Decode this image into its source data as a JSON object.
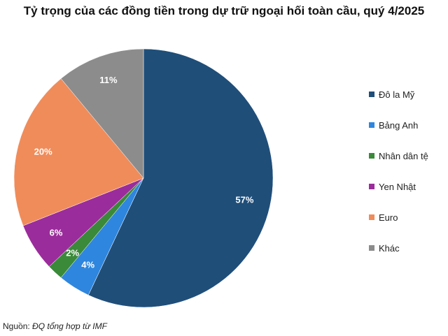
{
  "chart_data": {
    "type": "pie",
    "title": "Tỷ trọng của các đồng tiền trong dự trữ ngoại hối toàn cầu, quý 4/2025",
    "legend_position": "right",
    "slices": [
      {
        "label": "Đô la Mỹ",
        "value": 57,
        "display": "57%",
        "color": "#1F4E79"
      },
      {
        "label": "Bảng Anh",
        "value": 4,
        "display": "4%",
        "color": "#2E86DE"
      },
      {
        "label": "Nhân dân tệ",
        "value": 2,
        "display": "2%",
        "color": "#3A8A3A"
      },
      {
        "label": "Yen Nhật",
        "value": 6,
        "display": "6%",
        "color": "#9B2C9B"
      },
      {
        "label": "Euro",
        "value": 20,
        "display": "20%",
        "color": "#F08C5A"
      },
      {
        "label": "Khác",
        "value": 11,
        "display": "11%",
        "color": "#8C8C8C"
      }
    ]
  },
  "source": {
    "prefix": "Nguồn: ",
    "detail": "ĐQ tổng hợp từ IMF"
  }
}
